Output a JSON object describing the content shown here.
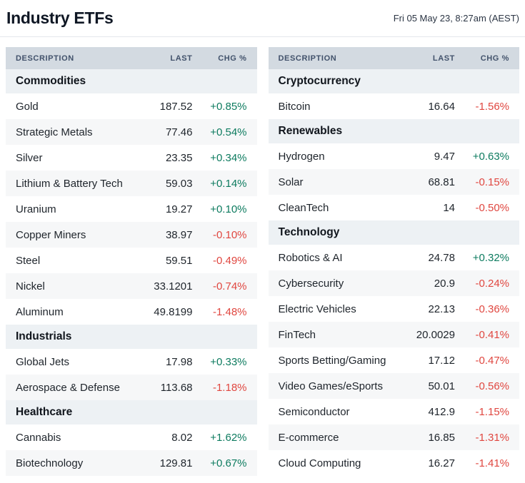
{
  "header": {
    "title": "Industry ETFs",
    "timestamp": "Fri 05 May 23, 8:27am (AEST)"
  },
  "columns": {
    "description": "DESCRIPTION",
    "last": "LAST",
    "chg": "CHG %"
  },
  "colors": {
    "positive": "#0d7b5f",
    "negative": "#e04740"
  },
  "tables": [
    {
      "rows": [
        {
          "type": "section",
          "label": "Commodities"
        },
        {
          "type": "data",
          "description": "Gold",
          "last": "187.52",
          "chg": "+0.85%",
          "direction": "up"
        },
        {
          "type": "data",
          "description": "Strategic Metals",
          "last": "77.46",
          "chg": "+0.54%",
          "direction": "up"
        },
        {
          "type": "data",
          "description": "Silver",
          "last": "23.35",
          "chg": "+0.34%",
          "direction": "up"
        },
        {
          "type": "data",
          "description": "Lithium & Battery Tech",
          "last": "59.03",
          "chg": "+0.14%",
          "direction": "up"
        },
        {
          "type": "data",
          "description": "Uranium",
          "last": "19.27",
          "chg": "+0.10%",
          "direction": "up"
        },
        {
          "type": "data",
          "description": "Copper Miners",
          "last": "38.97",
          "chg": "-0.10%",
          "direction": "down"
        },
        {
          "type": "data",
          "description": "Steel",
          "last": "59.51",
          "chg": "-0.49%",
          "direction": "down"
        },
        {
          "type": "data",
          "description": "Nickel",
          "last": "33.1201",
          "chg": "-0.74%",
          "direction": "down"
        },
        {
          "type": "data",
          "description": "Aluminum",
          "last": "49.8199",
          "chg": "-1.48%",
          "direction": "down"
        },
        {
          "type": "section",
          "label": "Industrials"
        },
        {
          "type": "data",
          "description": "Global Jets",
          "last": "17.98",
          "chg": "+0.33%",
          "direction": "up"
        },
        {
          "type": "data",
          "description": "Aerospace & Defense",
          "last": "113.68",
          "chg": "-1.18%",
          "direction": "down"
        },
        {
          "type": "section",
          "label": "Healthcare"
        },
        {
          "type": "data",
          "description": "Cannabis",
          "last": "8.02",
          "chg": "+1.62%",
          "direction": "up"
        },
        {
          "type": "data",
          "description": "Biotechnology",
          "last": "129.81",
          "chg": "+0.67%",
          "direction": "up"
        }
      ]
    },
    {
      "rows": [
        {
          "type": "section",
          "label": "Cryptocurrency"
        },
        {
          "type": "data",
          "description": "Bitcoin",
          "last": "16.64",
          "chg": "-1.56%",
          "direction": "down"
        },
        {
          "type": "section",
          "label": "Renewables"
        },
        {
          "type": "data",
          "description": "Hydrogen",
          "last": "9.47",
          "chg": "+0.63%",
          "direction": "up"
        },
        {
          "type": "data",
          "description": "Solar",
          "last": "68.81",
          "chg": "-0.15%",
          "direction": "down"
        },
        {
          "type": "data",
          "description": "CleanTech",
          "last": "14",
          "chg": "-0.50%",
          "direction": "down"
        },
        {
          "type": "section",
          "label": "Technology"
        },
        {
          "type": "data",
          "description": "Robotics & AI",
          "last": "24.78",
          "chg": "+0.32%",
          "direction": "up"
        },
        {
          "type": "data",
          "description": "Cybersecurity",
          "last": "20.9",
          "chg": "-0.24%",
          "direction": "down"
        },
        {
          "type": "data",
          "description": "Electric Vehicles",
          "last": "22.13",
          "chg": "-0.36%",
          "direction": "down"
        },
        {
          "type": "data",
          "description": "FinTech",
          "last": "20.0029",
          "chg": "-0.41%",
          "direction": "down"
        },
        {
          "type": "data",
          "description": "Sports Betting/Gaming",
          "last": "17.12",
          "chg": "-0.47%",
          "direction": "down"
        },
        {
          "type": "data",
          "description": "Video Games/eSports",
          "last": "50.01",
          "chg": "-0.56%",
          "direction": "down"
        },
        {
          "type": "data",
          "description": "Semiconductor",
          "last": "412.9",
          "chg": "-1.15%",
          "direction": "down"
        },
        {
          "type": "data",
          "description": "E-commerce",
          "last": "16.85",
          "chg": "-1.31%",
          "direction": "down"
        },
        {
          "type": "data",
          "description": "Cloud Computing",
          "last": "16.27",
          "chg": "-1.41%",
          "direction": "down"
        }
      ]
    }
  ]
}
